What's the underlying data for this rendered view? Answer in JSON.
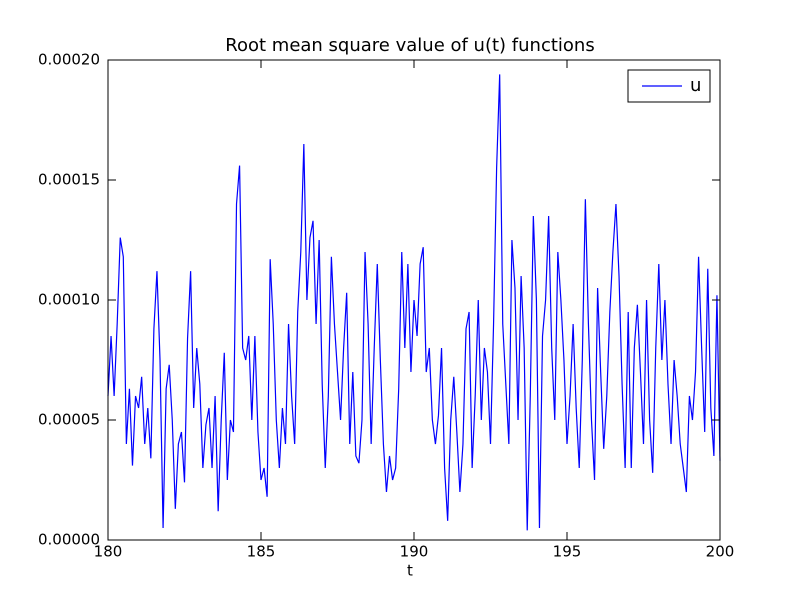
{
  "chart_data": {
    "type": "line",
    "title": "Root mean square value of u(t) functions",
    "xlabel": "t",
    "x": [
      180,
      180.1,
      180.2,
      180.3,
      180.4,
      180.5,
      180.6,
      180.7,
      180.8,
      180.9,
      181,
      181.1,
      181.2,
      181.3,
      181.4,
      181.5,
      181.6,
      181.7,
      181.8,
      181.9,
      182,
      182.1,
      182.2,
      182.3,
      182.4,
      182.5,
      182.6,
      182.7,
      182.8,
      182.9,
      183,
      183.1,
      183.2,
      183.3,
      183.4,
      183.5,
      183.6,
      183.7,
      183.8,
      183.9,
      184,
      184.1,
      184.2,
      184.3,
      184.4,
      184.5,
      184.6,
      184.7,
      184.8,
      184.9,
      185,
      185.1,
      185.2,
      185.3,
      185.4,
      185.5,
      185.6,
      185.7,
      185.8,
      185.9,
      186,
      186.1,
      186.2,
      186.3,
      186.4,
      186.5,
      186.6,
      186.7,
      186.8,
      186.9,
      187,
      187.1,
      187.2,
      187.3,
      187.4,
      187.5,
      187.6,
      187.7,
      187.8,
      187.9,
      188,
      188.1,
      188.2,
      188.3,
      188.4,
      188.5,
      188.6,
      188.7,
      188.8,
      188.9,
      189,
      189.1,
      189.2,
      189.3,
      189.4,
      189.5,
      189.6,
      189.7,
      189.8,
      189.9,
      190,
      190.1,
      190.2,
      190.3,
      190.4,
      190.5,
      190.6,
      190.7,
      190.8,
      190.9,
      191,
      191.1,
      191.2,
      191.3,
      191.4,
      191.5,
      191.6,
      191.7,
      191.8,
      191.9,
      192,
      192.1,
      192.2,
      192.3,
      192.4,
      192.5,
      192.6,
      192.7,
      192.8,
      192.9,
      193,
      193.1,
      193.2,
      193.3,
      193.4,
      193.5,
      193.6,
      193.7,
      193.8,
      193.9,
      194,
      194.1,
      194.2,
      194.3,
      194.4,
      194.5,
      194.6,
      194.7,
      194.8,
      194.9,
      195,
      195.1,
      195.2,
      195.3,
      195.4,
      195.5,
      195.6,
      195.7,
      195.8,
      195.9,
      196,
      196.1,
      196.2,
      196.3,
      196.4,
      196.5,
      196.6,
      196.7,
      196.8,
      196.9,
      197,
      197.1,
      197.2,
      197.3,
      197.4,
      197.5,
      197.6,
      197.7,
      197.8,
      197.9,
      198,
      198.1,
      198.2,
      198.3,
      198.4,
      198.5,
      198.6,
      198.7,
      198.8,
      198.9,
      199,
      199.1,
      199.2,
      199.3,
      199.4,
      199.5,
      199.6,
      199.7,
      199.8,
      199.9,
      200
    ],
    "series": [
      {
        "name": "u",
        "color": "#0000ff",
        "values": [
          6e-05,
          8.5e-05,
          6e-05,
          9e-05,
          0.000126,
          0.000118,
          4e-05,
          6.3e-05,
          3.1e-05,
          6e-05,
          5.5e-05,
          6.8e-05,
          4e-05,
          5.5e-05,
          3.4e-05,
          8.8e-05,
          0.000112,
          7.5e-05,
          5e-06,
          6.3e-05,
          7.3e-05,
          5e-05,
          1.3e-05,
          4e-05,
          4.5e-05,
          2.4e-05,
          8.4e-05,
          0.000112,
          5.5e-05,
          8e-05,
          6.5e-05,
          3e-05,
          4.8e-05,
          5.5e-05,
          3e-05,
          6e-05,
          1.2e-05,
          5e-05,
          7.8e-05,
          2.5e-05,
          5e-05,
          4.5e-05,
          0.00014,
          0.000156,
          8e-05,
          7.5e-05,
          8.5e-05,
          5e-05,
          8.5e-05,
          4.5e-05,
          2.5e-05,
          3e-05,
          1.8e-05,
          0.000117,
          9e-05,
          5e-05,
          3e-05,
          5.5e-05,
          4e-05,
          9e-05,
          6e-05,
          4e-05,
          9.5e-05,
          0.00012,
          0.000165,
          0.0001,
          0.000126,
          0.000133,
          9e-05,
          0.000125,
          6.5e-05,
          3e-05,
          6e-05,
          0.000118,
          9e-05,
          7e-05,
          5e-05,
          8e-05,
          0.000103,
          4e-05,
          7e-05,
          3.5e-05,
          3.2e-05,
          5e-05,
          0.00012,
          9e-05,
          4e-05,
          8e-05,
          0.000115,
          7.5e-05,
          4e-05,
          2e-05,
          3.5e-05,
          2.5e-05,
          3e-05,
          6.3e-05,
          0.00012,
          8e-05,
          0.000115,
          7e-05,
          0.0001,
          8.5e-05,
          0.000115,
          0.000122,
          7e-05,
          8e-05,
          5e-05,
          4e-05,
          5.2e-05,
          8e-05,
          3e-05,
          8e-06,
          5e-05,
          6.8e-05,
          4.5e-05,
          2e-05,
          4e-05,
          8.8e-05,
          9.5e-05,
          3e-05,
          6e-05,
          0.0001,
          5e-05,
          8e-05,
          7e-05,
          4e-05,
          9e-05,
          0.000155,
          0.000194,
          9e-05,
          6.5e-05,
          4e-05,
          0.000125,
          0.000105,
          5e-05,
          0.00011,
          8e-05,
          4e-06,
          6e-05,
          0.000135,
          0.0001,
          5e-06,
          8.5e-05,
          0.0001,
          0.000135,
          8e-05,
          5e-05,
          0.00012,
          0.0001,
          7.5e-05,
          4e-05,
          6e-05,
          9e-05,
          5.5e-05,
          3e-05,
          7.5e-05,
          0.000142,
          9e-05,
          5e-05,
          2.5e-05,
          0.000105,
          7e-05,
          3.8e-05,
          6e-05,
          9.5e-05,
          0.00012,
          0.00014,
          0.00011,
          6.5e-05,
          3e-05,
          9.5e-05,
          3e-05,
          8e-05,
          9.8e-05,
          7e-05,
          4e-05,
          0.0001,
          5e-05,
          2.8e-05,
          8e-05,
          0.000115,
          7.5e-05,
          0.0001,
          6.5e-05,
          4e-05,
          7.5e-05,
          6e-05,
          4e-05,
          3e-05,
          2e-05,
          6e-05,
          5e-05,
          7e-05,
          0.000118,
          8e-05,
          4.5e-05,
          0.000113,
          5.5e-05,
          3.5e-05,
          0.000102,
          3.3e-05
        ]
      }
    ],
    "xlim": [
      180,
      200
    ],
    "ylim": [
      0,
      0.0002
    ],
    "xticks": [
      180,
      185,
      190,
      195,
      200
    ],
    "yticks": [
      {
        "value": 0,
        "label": "0.00000"
      },
      {
        "value": 5e-05,
        "label": "0.00005"
      },
      {
        "value": 0.0001,
        "label": "0.00010"
      },
      {
        "value": 0.00015,
        "label": "0.00015"
      },
      {
        "value": 0.0002,
        "label": "0.00020"
      }
    ],
    "legend": "upper right"
  }
}
